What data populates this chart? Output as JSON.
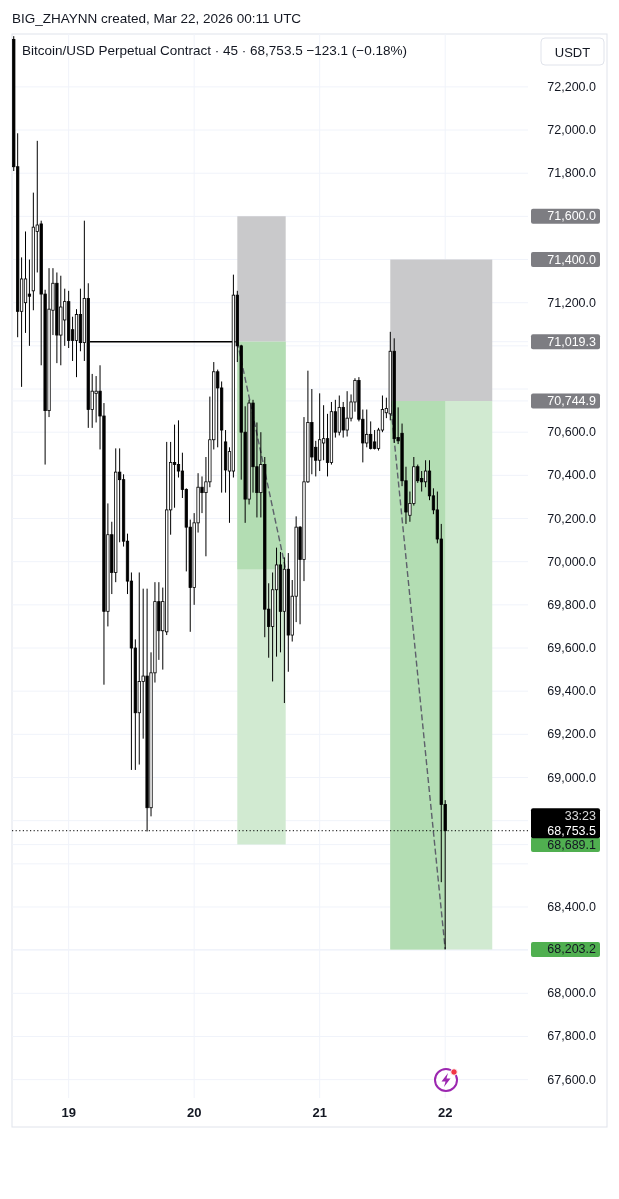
{
  "chart_data": {
    "type": "candlestick",
    "title": "Bitcoin/USD Perpetual Contract · 45 · 68,753.5 −123.1 (−0.18%)",
    "ylabel": "USDT",
    "annotations": [
      "BIG_ZHAYNN created, Mar 22, 2026 00:11 UTC",
      "33:23"
    ],
    "xlim": [
      "2026-03-18T13:10",
      "2026-03-22T15:50"
    ],
    "xticks": [
      {
        "value": "2026-03-19",
        "label": "19"
      },
      {
        "value": "2026-03-20",
        "label": "20"
      },
      {
        "value": "2026-03-21",
        "label": "21"
      },
      {
        "value": "2026-03-22",
        "label": "22"
      }
    ],
    "ylim": [
      67515,
      72445
    ],
    "yticks": [
      {
        "value": 72200,
        "label": "72,200.0"
      },
      {
        "value": 72000,
        "label": "72,000.0"
      },
      {
        "value": 71800,
        "label": "71,800.0"
      },
      {
        "value": 71600,
        "label": "71,600.0"
      },
      {
        "value": 71400,
        "label": "71,400.0"
      },
      {
        "value": 71200,
        "label": "71,200.0"
      },
      {
        "value": 71019.3,
        "label": "71,019.3"
      },
      {
        "value": 71000,
        "label": null
      },
      {
        "value": 70800,
        "label": null
      },
      {
        "value": 70744.9,
        "label": "70,744.9"
      },
      {
        "value": 70600,
        "label": "70,600.0"
      },
      {
        "value": 70400,
        "label": "70,400.0"
      },
      {
        "value": 70200,
        "label": "70,200.0"
      },
      {
        "value": 70000,
        "label": "70,000.0"
      },
      {
        "value": 69800,
        "label": "69,800.0"
      },
      {
        "value": 69600,
        "label": "69,600.0"
      },
      {
        "value": 69400,
        "label": "69,400.0"
      },
      {
        "value": 69200,
        "label": "69,200.0"
      },
      {
        "value": 69000,
        "label": "69,000.0"
      },
      {
        "value": 68800,
        "label": null
      },
      {
        "value": 68689.1,
        "label": "68,689.1"
      },
      {
        "value": 68600,
        "label": null
      },
      {
        "value": 68400,
        "label": "68,400.0"
      },
      {
        "value": 68203.2,
        "label": "68,203.2"
      },
      {
        "value": 68200,
        "label": null
      },
      {
        "value": 68000,
        "label": "68,000.0"
      },
      {
        "value": 67800,
        "label": "67,800.0"
      },
      {
        "value": 67600,
        "label": "67,600.0"
      }
    ],
    "grid": true,
    "series": [
      {
        "type": "line",
        "x": [
          "2026-03-20T08:15",
          "2026-03-20T17:30"
        ],
        "values": [
          null,
          null
        ],
        "lower": [
          71019.3,
          71019.3
        ],
        "upper": [
          71600,
          71600
        ],
        "color": "#c9c9cb"
      },
      {
        "type": "line",
        "x": [
          "2026-03-20T08:15",
          "2026-03-20T17:30"
        ],
        "values": [
          null,
          null
        ],
        "lower": [
          68689.1,
          68689.1
        ],
        "upper": [
          71019.3,
          71019.3
        ],
        "color": "#d1ead1"
      },
      {
        "type": "line",
        "x": [
          "2026-03-20T08:15",
          "2026-03-20T17:30"
        ],
        "values": [
          null,
          null
        ],
        "lower": [
          69965,
          69965
        ],
        "upper": [
          71019.3,
          71019.3
        ],
        "color": "#b3ddb3"
      },
      {
        "type": "line",
        "x": [
          "2026-03-21T13:30",
          "2026-03-22T09:00"
        ],
        "values": [
          null,
          null
        ],
        "lower": [
          70744.9,
          70744.9
        ],
        "upper": [
          71400,
          71400
        ],
        "color": "#c9c9cb"
      },
      {
        "type": "line",
        "x": [
          "2026-03-21T13:30",
          "2026-03-22T09:00"
        ],
        "values": [
          null,
          null
        ],
        "lower": [
          68203.2,
          68203.2
        ],
        "upper": [
          70744.9,
          70744.9
        ],
        "color": "#d1ead1"
      },
      {
        "type": "line",
        "x": [
          "2026-03-21T13:30",
          "2026-03-22T00:00"
        ],
        "values": [
          null,
          null
        ],
        "lower": [
          68203.2,
          68203.2
        ],
        "upper": [
          70744.9,
          70744.9
        ],
        "color": "#b3ddb3"
      },
      {
        "type": "line",
        "x": [
          "2026-03-19T04:05",
          "2026-03-20T07:55"
        ],
        "values": [
          71019.3,
          71019.3
        ],
        "color": "#000000",
        "line_style": "solid"
      },
      {
        "type": "line",
        "x": [
          "2026-03-20T08:15",
          "2026-03-20T17:30"
        ],
        "values": [
          71019.3,
          69965
        ],
        "color": "#5d606b",
        "line_style": "dashed"
      },
      {
        "type": "line",
        "x": [
          "2026-03-21T13:30",
          "2026-03-22T00:00"
        ],
        "values": [
          70744.9,
          68203.2
        ],
        "color": "#5d606b",
        "line_style": "dashed"
      },
      {
        "color": "#000000",
        "x": [
          "2026-03-18T13:30",
          "2026-03-18T14:15",
          "2026-03-18T15:00",
          "2026-03-18T15:45",
          "2026-03-18T16:30",
          "2026-03-18T17:15",
          "2026-03-18T18:00",
          "2026-03-18T18:45",
          "2026-03-18T19:30",
          "2026-03-18T20:15",
          "2026-03-18T21:00",
          "2026-03-18T21:45",
          "2026-03-18T22:30",
          "2026-03-18T23:15",
          "2026-03-19T00:00",
          "2026-03-19T00:45",
          "2026-03-19T01:30",
          "2026-03-19T02:15",
          "2026-03-19T03:00",
          "2026-03-19T03:45",
          "2026-03-19T04:30",
          "2026-03-19T05:15",
          "2026-03-19T06:00",
          "2026-03-19T06:45",
          "2026-03-19T07:30",
          "2026-03-19T08:15",
          "2026-03-19T09:00",
          "2026-03-19T09:45",
          "2026-03-19T10:30",
          "2026-03-19T11:15",
          "2026-03-19T12:00",
          "2026-03-19T12:45",
          "2026-03-19T13:30",
          "2026-03-19T14:15",
          "2026-03-19T15:00",
          "2026-03-19T15:45",
          "2026-03-19T16:30",
          "2026-03-19T17:15",
          "2026-03-19T18:00",
          "2026-03-19T18:45",
          "2026-03-19T19:30",
          "2026-03-19T20:15",
          "2026-03-19T21:00",
          "2026-03-19T21:45",
          "2026-03-19T22:30",
          "2026-03-19T23:15",
          "2026-03-20T00:00",
          "2026-03-20T00:45",
          "2026-03-20T01:30",
          "2026-03-20T02:15",
          "2026-03-20T03:00",
          "2026-03-20T03:45",
          "2026-03-20T04:30",
          "2026-03-20T05:15",
          "2026-03-20T06:00",
          "2026-03-20T06:45",
          "2026-03-20T07:30",
          "2026-03-20T08:15",
          "2026-03-20T09:00",
          "2026-03-20T09:45",
          "2026-03-20T10:30",
          "2026-03-20T11:15",
          "2026-03-20T12:00",
          "2026-03-20T12:45",
          "2026-03-20T13:30",
          "2026-03-20T14:15",
          "2026-03-20T15:00",
          "2026-03-20T15:45",
          "2026-03-20T16:30",
          "2026-03-20T17:15",
          "2026-03-20T18:00",
          "2026-03-20T18:45",
          "2026-03-20T19:30",
          "2026-03-20T20:15",
          "2026-03-20T21:00",
          "2026-03-20T21:45",
          "2026-03-20T22:30",
          "2026-03-20T23:15",
          "2026-03-21T00:00",
          "2026-03-21T00:45",
          "2026-03-21T01:30",
          "2026-03-21T02:15",
          "2026-03-21T03:00",
          "2026-03-21T03:45",
          "2026-03-21T04:30",
          "2026-03-21T05:15",
          "2026-03-21T06:00",
          "2026-03-21T06:45",
          "2026-03-21T07:30",
          "2026-03-21T08:15",
          "2026-03-21T09:00",
          "2026-03-21T09:45",
          "2026-03-21T10:30",
          "2026-03-21T11:15",
          "2026-03-21T12:00",
          "2026-03-21T12:45",
          "2026-03-21T13:30",
          "2026-03-21T14:15",
          "2026-03-21T15:00",
          "2026-03-21T15:45",
          "2026-03-21T16:30",
          "2026-03-21T17:15",
          "2026-03-21T18:00",
          "2026-03-21T18:45",
          "2026-03-21T19:30",
          "2026-03-21T20:15",
          "2026-03-21T21:00",
          "2026-03-21T21:45",
          "2026-03-21T22:30",
          "2026-03-21T23:15",
          "2026-03-22T00:00"
        ],
        "ohlc": [
          [
            72420,
            72435,
            71810,
            71830
          ],
          [
            71830,
            71985,
            71040,
            71160
          ],
          [
            71160,
            71410,
            70810,
            71310
          ],
          [
            71200,
            71530,
            71060,
            71310
          ],
          [
            71240,
            71400,
            71000,
            71230
          ],
          [
            71255,
            71710,
            71165,
            71550
          ],
          [
            71530,
            71950,
            71340,
            71560
          ],
          [
            71565,
            71580,
            70910,
            71240
          ],
          [
            71240,
            71260,
            70450,
            70700
          ],
          [
            70700,
            71360,
            70670,
            71170
          ],
          [
            71165,
            71360,
            71050,
            71290
          ],
          [
            71290,
            71340,
            70920,
            71050
          ],
          [
            71050,
            71325,
            70910,
            71180
          ],
          [
            71120,
            71265,
            71000,
            71205
          ],
          [
            71205,
            71255,
            70990,
            71025
          ],
          [
            71075,
            71135,
            70930,
            71025
          ],
          [
            71025,
            71170,
            70855,
            71145
          ],
          [
            71145,
            71265,
            70975,
            71015
          ],
          [
            71015,
            71580,
            70930,
            71220
          ],
          [
            71220,
            71290,
            70620,
            70705
          ],
          [
            70705,
            70870,
            70620,
            70790
          ],
          [
            70780,
            70860,
            70645,
            70790
          ],
          [
            70790,
            70910,
            70520,
            70675
          ],
          [
            70675,
            70735,
            69430,
            69770
          ],
          [
            69770,
            70270,
            69700,
            70125
          ],
          [
            70125,
            70185,
            69850,
            69950
          ],
          [
            69950,
            70525,
            69905,
            70415
          ],
          [
            70415,
            70525,
            70090,
            70380
          ],
          [
            70380,
            70405,
            70070,
            70095
          ],
          [
            70095,
            70130,
            69850,
            69910
          ],
          [
            69910,
            69950,
            69035,
            69600
          ],
          [
            69600,
            69640,
            69035,
            69300
          ],
          [
            69300,
            69950,
            69060,
            69445
          ],
          [
            69445,
            69875,
            69180,
            69470
          ],
          [
            69470,
            69875,
            68750,
            68860
          ],
          [
            68860,
            69580,
            68820,
            69485
          ],
          [
            69485,
            69905,
            69440,
            69815
          ],
          [
            69815,
            69905,
            69545,
            69680
          ],
          [
            69680,
            69880,
            69500,
            69815
          ],
          [
            69675,
            70555,
            69660,
            70240
          ],
          [
            70240,
            70555,
            70125,
            70460
          ],
          [
            70460,
            70635,
            70250,
            70450
          ],
          [
            70450,
            70655,
            70390,
            70420
          ],
          [
            70420,
            70505,
            70295,
            70335
          ],
          [
            70335,
            70340,
            69955,
            70160
          ],
          [
            70160,
            70195,
            69675,
            69880
          ],
          [
            69880,
            70225,
            69800,
            70180
          ],
          [
            70180,
            70410,
            70135,
            70345
          ],
          [
            70345,
            70395,
            70225,
            70320
          ],
          [
            70320,
            70485,
            70025,
            70370
          ],
          [
            70370,
            70765,
            70345,
            70565
          ],
          [
            70565,
            70925,
            70520,
            70880
          ],
          [
            70880,
            70890,
            70530,
            70805
          ],
          [
            70805,
            70835,
            70320,
            70610
          ],
          [
            70555,
            70610,
            70320,
            70425
          ],
          [
            70420,
            70530,
            70180,
            70510
          ],
          [
            70420,
            71330,
            70390,
            71235
          ],
          [
            71235,
            71255,
            70925,
            71000
          ],
          [
            71000,
            71005,
            70380,
            70600
          ],
          [
            70600,
            70720,
            70180,
            70290
          ],
          [
            70290,
            70750,
            70265,
            70735
          ],
          [
            70735,
            70750,
            70320,
            70440
          ],
          [
            70440,
            70645,
            70205,
            70320
          ],
          [
            70320,
            70600,
            70205,
            70450
          ],
          [
            70450,
            70485,
            69650,
            69780
          ],
          [
            69780,
            69900,
            69555,
            69700
          ],
          [
            69700,
            69950,
            69445,
            69870
          ],
          [
            69870,
            70065,
            69560,
            69985
          ],
          [
            69985,
            70045,
            69580,
            69770
          ],
          [
            69770,
            70020,
            69345,
            69965
          ],
          [
            69965,
            70040,
            69490,
            69660
          ],
          [
            69660,
            69915,
            69630,
            69840
          ],
          [
            69840,
            70210,
            69720,
            70160
          ],
          [
            70160,
            70165,
            69710,
            70010
          ],
          [
            70010,
            70670,
            69910,
            70370
          ],
          [
            70370,
            70885,
            70365,
            70645
          ],
          [
            70645,
            70800,
            70405,
            70485
          ],
          [
            70530,
            70560,
            70395,
            70470
          ],
          [
            70470,
            70780,
            70420,
            70565
          ],
          [
            70550,
            70725,
            70470,
            70570
          ],
          [
            70570,
            70685,
            70395,
            70460
          ],
          [
            70460,
            70740,
            70450,
            70695
          ],
          [
            70695,
            70750,
            70575,
            70600
          ],
          [
            70600,
            70770,
            70585,
            70715
          ],
          [
            70715,
            70740,
            70575,
            70610
          ],
          [
            70610,
            70790,
            70580,
            70665
          ],
          [
            70665,
            70775,
            70650,
            70740
          ],
          [
            70740,
            70850,
            70695,
            70840
          ],
          [
            70840,
            70855,
            70650,
            70660
          ],
          [
            70660,
            70705,
            70460,
            70550
          ],
          [
            70550,
            70705,
            70530,
            70590
          ],
          [
            70590,
            70650,
            70520,
            70525
          ],
          [
            70555,
            70610,
            70520,
            70525
          ],
          [
            70525,
            70620,
            70515,
            70610
          ],
          [
            70610,
            70770,
            70600,
            70705
          ],
          [
            70690,
            70760,
            70665,
            70710
          ],
          [
            70685,
            71065,
            70655,
            70975
          ],
          [
            70975,
            71035,
            70550,
            70570
          ],
          [
            70575,
            70715,
            70545,
            70560
          ],
          [
            70595,
            70640,
            70350,
            70375
          ],
          [
            70375,
            70440,
            70175,
            70230
          ],
          [
            70215,
            70325,
            70185,
            70270
          ],
          [
            70270,
            70485,
            70260,
            70440
          ],
          [
            70440,
            70450,
            70365,
            70375
          ],
          [
            70385,
            70420,
            70325,
            70370
          ],
          [
            70370,
            70470,
            70345,
            70420
          ],
          [
            70420,
            70470,
            70285,
            70305
          ],
          [
            70305,
            70340,
            70220,
            70240
          ],
          [
            70240,
            70325,
            70085,
            70105
          ],
          [
            70105,
            70175,
            68515,
            68875
          ],
          [
            68875,
            68895,
            68205,
            68753.5
          ]
        ]
      }
    ],
    "ref_lines": [
      {
        "axis": "y",
        "value": 68753.5,
        "label": "68,753.5",
        "color": "#000000",
        "line_style": "dotted"
      }
    ]
  }
}
